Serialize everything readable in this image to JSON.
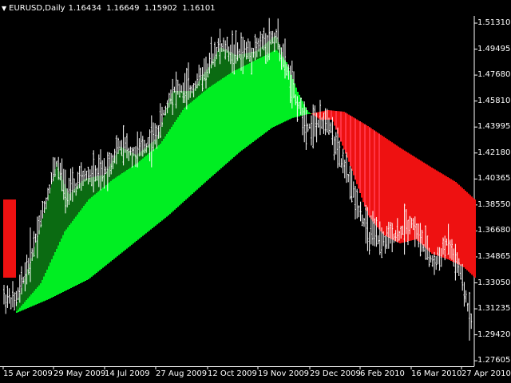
{
  "header": {
    "symbol": "EURUSD,Daily",
    "open": "1.16434",
    "high": "1.16649",
    "low": "1.15902",
    "close": "1.16101"
  },
  "y_axis": [
    "1.51310",
    "1.49495",
    "1.47680",
    "1.45810",
    "1.43995",
    "1.42180",
    "1.40365",
    "1.38550",
    "1.36680",
    "1.34865",
    "1.33050",
    "1.31235",
    "1.29420",
    "1.27605"
  ],
  "x_axis": [
    "15 Apr 2009",
    "29 May 2009",
    "14 Jul 2009",
    "27 Aug 2009",
    "12 Oct 2009",
    "19 Nov 2009",
    "29 Dec 2009",
    "6 Feb 2010",
    "16 Mar 2010",
    "27 Apr 2010"
  ],
  "colors": {
    "background": "#000000",
    "axis": "#ffffff",
    "bars": "#ffffff",
    "cloud_up": "#00ee22",
    "cloud_up_dark": "#0b6b12",
    "cloud_down": "#ee1111",
    "cloud_down_light": "#ff3344"
  }
}
